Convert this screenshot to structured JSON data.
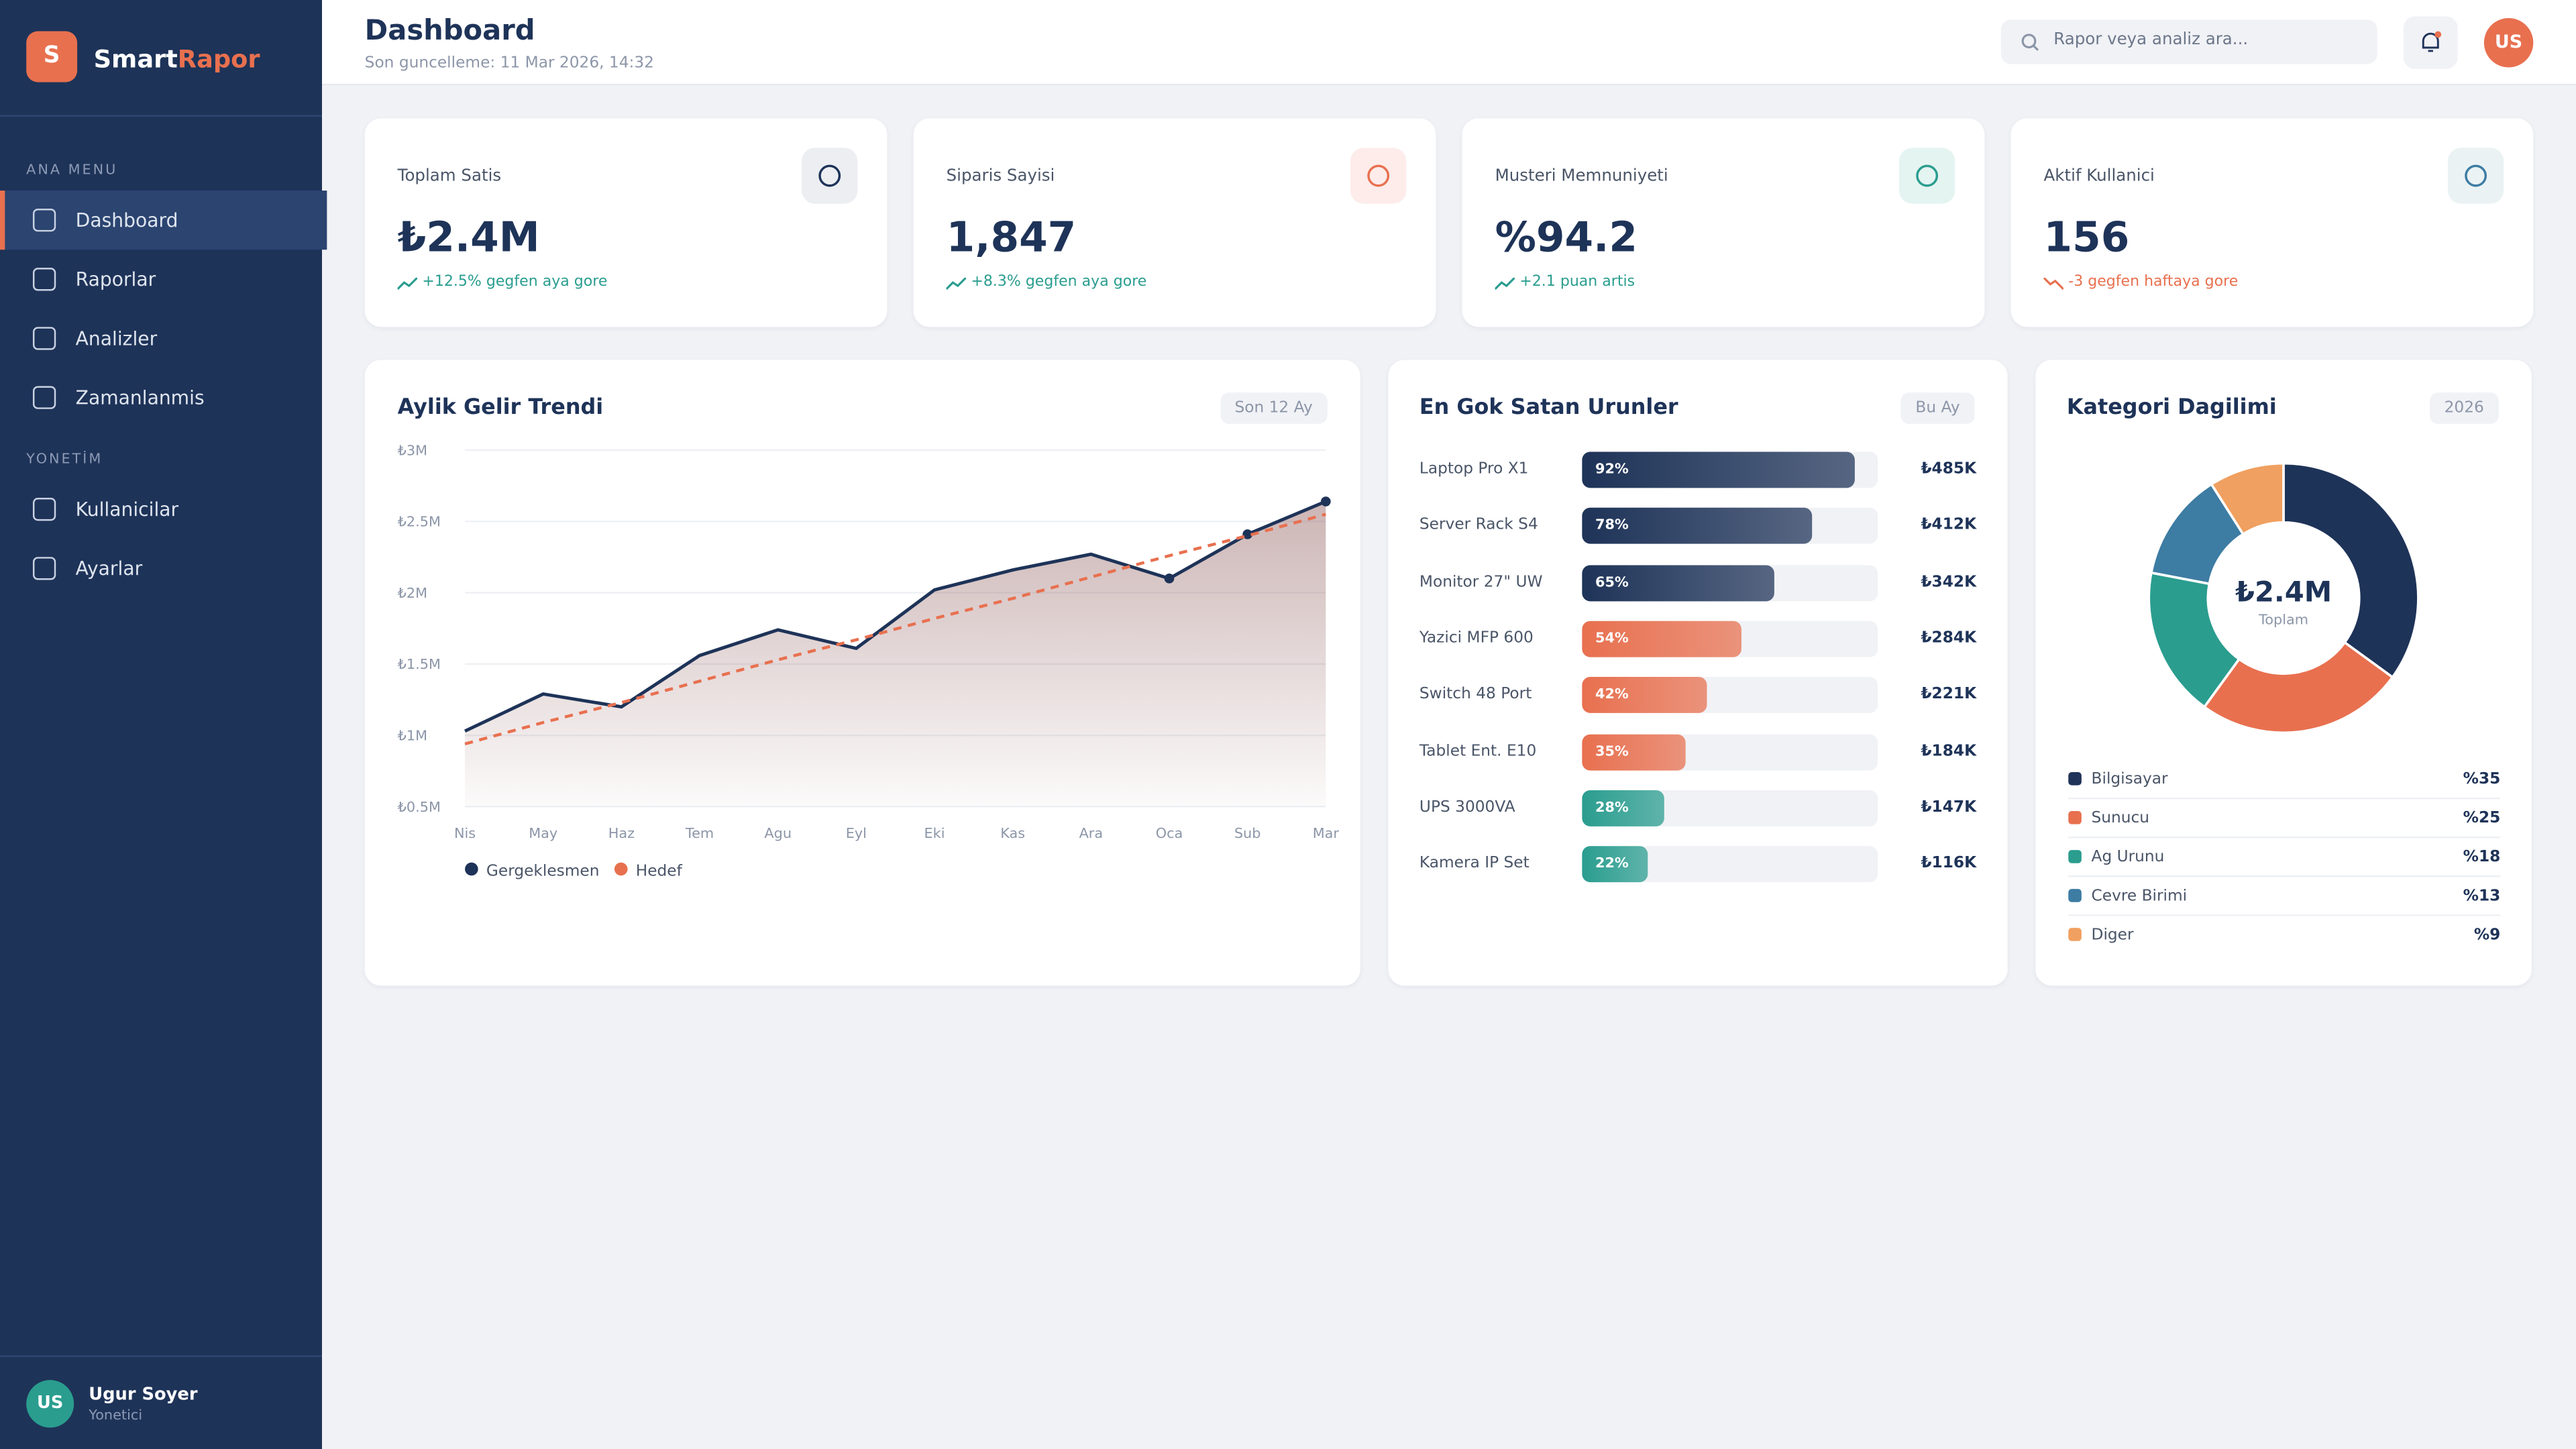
{
  "sidebar": {
    "logo_letter": "S",
    "brand_part1": "Smart",
    "brand_part2": "Rapor",
    "section1": "ANA MENU",
    "menu": [
      "Dashboard",
      "Raporlar",
      "Analizler",
      "Zamanlanmis"
    ],
    "active": 0,
    "section2": "YONETİM",
    "menu2": [
      "Kullanicilar",
      "Ayarlar"
    ],
    "user": {
      "initials": "US",
      "name": "Ugur Soyer",
      "role": "Yonetici"
    }
  },
  "header": {
    "title": "Dashboard",
    "subtitle": "Son guncelleme: 11 Mar 2026, 14:32",
    "search_placeholder": "Rapor veya analiz ara...",
    "avatar": "US"
  },
  "kpis": [
    {
      "label": "Toplam Satis",
      "value": "₺2.4M",
      "delta": "+12.5% gegfen aya gore",
      "trend": "up"
    },
    {
      "label": "Siparis Sayisi",
      "value": "1,847",
      "delta": "+8.3% gegfen aya gore",
      "trend": "up"
    },
    {
      "label": "Musteri Memnuniyeti",
      "value": "%94.2",
      "delta": "+2.1 puan artis",
      "trend": "up"
    },
    {
      "label": "Aktif Kullanici",
      "value": "156",
      "delta": "-3 gegfen haftaya gore",
      "trend": "down"
    }
  ],
  "revenue_chart": {
    "type": "line",
    "title": "Aylik Gelir Trendi",
    "badge": "Son 12 Ay",
    "categories": [
      "Nis",
      "May",
      "Haz",
      "Tem",
      "Agu",
      "Eyl",
      "Eki",
      "Kas",
      "Ara",
      "Oca",
      "Sub",
      "Mar"
    ],
    "series": [
      {
        "name": "Gergeklesmen",
        "color": "#1e3358",
        "dashed": false,
        "values": [
          1030000,
          1290000,
          1200000,
          1560000,
          1740000,
          1610000,
          2020000,
          2160000,
          2270000,
          2100000,
          2410000,
          2640000
        ]
      },
      {
        "name": "Hedef",
        "color": "#e8704f",
        "dashed": true,
        "values": [
          940000,
          1090000,
          1230000,
          1380000,
          1530000,
          1670000,
          1820000,
          1960000,
          2110000,
          2260000,
          2400000,
          2550000
        ]
      }
    ],
    "ylim": [
      500000,
      3000000
    ],
    "yticks": [
      {
        "value": 3000000,
        "label": "₺3M"
      },
      {
        "value": 2500000,
        "label": "₺2.5M"
      },
      {
        "value": 2000000,
        "label": "₺2M"
      },
      {
        "value": 1500000,
        "label": "₺1.5M"
      },
      {
        "value": 1000000,
        "label": "₺1M"
      },
      {
        "value": 500000,
        "label": "₺0.5M"
      }
    ],
    "grid": true
  },
  "top_products": {
    "type": "bar",
    "title": "En Gok Satan Urunler",
    "badge": "Bu Ay",
    "categories": [
      "Laptop Pro X1",
      "Server Rack S4",
      "Monitor 27\" UW",
      "Yazici MFP 600",
      "Switch 48 Port",
      "Tablet Ent. E10",
      "UPS 3000VA",
      "Kamera IP Set"
    ],
    "values": [
      92,
      78,
      65,
      54,
      42,
      35,
      28,
      22
    ],
    "value_labels": [
      "92%",
      "78%",
      "65%",
      "54%",
      "42%",
      "35%",
      "28%",
      "22%"
    ],
    "amounts": [
      "₺485K",
      "₺412K",
      "₺342K",
      "₺284K",
      "₺221K",
      "₺184K",
      "₺147K",
      "₺116K"
    ],
    "xlim": [
      0,
      100
    ],
    "colors": [
      "#1e3358",
      "#1e3358",
      "#1e3358",
      "#e8704f",
      "#e8704f",
      "#e8704f",
      "#2a9d8f",
      "#2a9d8f"
    ]
  },
  "category_chart": {
    "type": "pie",
    "title": "Kategori Dagilimi",
    "badge": "2026",
    "center_value": "₺2.4M",
    "center_label": "Toplam",
    "categories": [
      "Bilgisayar",
      "Sunucu",
      "Ag Urunu",
      "Cevre Birimi",
      "Diger"
    ],
    "values": [
      35,
      25,
      18,
      13,
      9
    ],
    "value_labels": [
      "%35",
      "%25",
      "%18",
      "%13",
      "%9"
    ],
    "colors": [
      "#1e3358",
      "#e8704f",
      "#2a9d8f",
      "#3d7ca3",
      "#f0a060"
    ]
  }
}
